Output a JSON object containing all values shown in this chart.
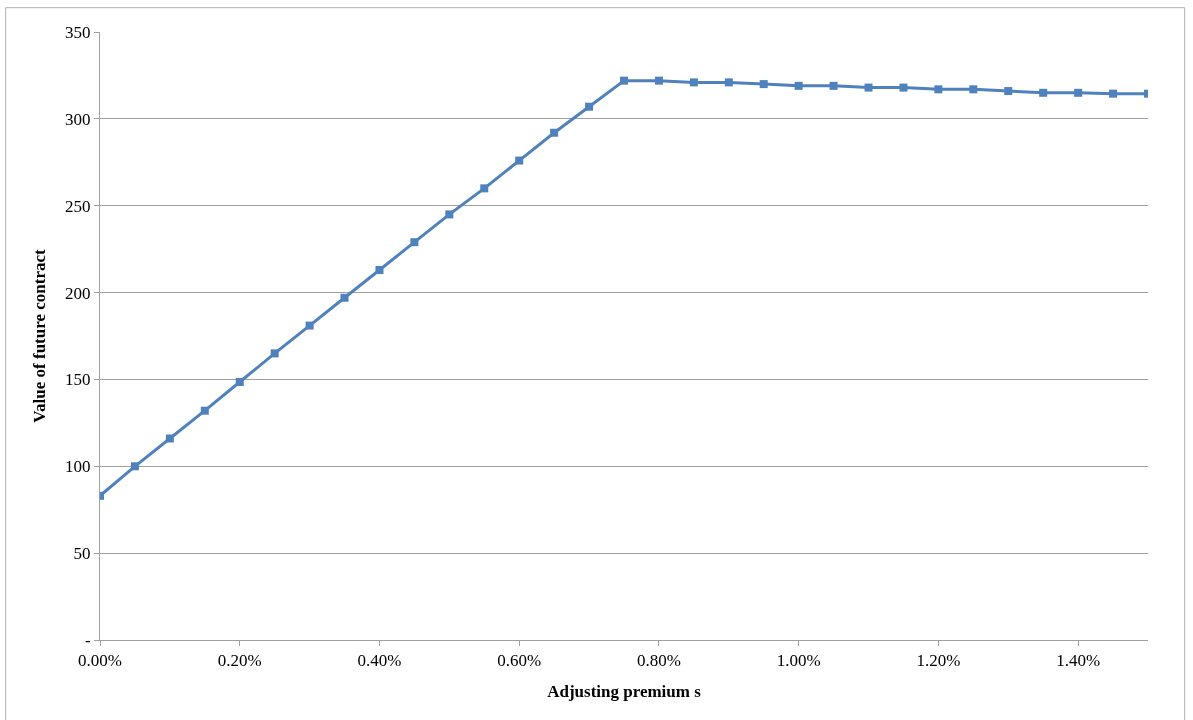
{
  "chart_data": {
    "type": "line",
    "xlabel": "Adjusting premium s",
    "ylabel": "Value of future contract",
    "x": [
      0,
      0.05,
      0.1,
      0.15,
      0.2,
      0.25,
      0.3,
      0.35,
      0.4,
      0.45,
      0.5,
      0.55,
      0.6,
      0.65,
      0.7,
      0.75,
      0.8,
      0.85,
      0.9,
      0.95,
      1.0,
      1.05,
      1.1,
      1.15,
      1.2,
      1.25,
      1.3,
      1.35,
      1.4,
      1.45,
      1.5
    ],
    "series": [
      {
        "color": "#4f81bd",
        "values": [
          83,
          100,
          116,
          132,
          148.5,
          165,
          181,
          197,
          213,
          229,
          245,
          260,
          276,
          292,
          307,
          322,
          322,
          321,
          321,
          320,
          319,
          319,
          318,
          318,
          317,
          317,
          316,
          315,
          315,
          314.5,
          314.5
        ]
      }
    ],
    "xlim": [
      0,
      1.5
    ],
    "xticks": [
      {
        "value": 0,
        "label": "0.00%"
      },
      {
        "value": 0.2,
        "label": "0.20%"
      },
      {
        "value": 0.4,
        "label": "0.40%"
      },
      {
        "value": 0.6,
        "label": "0.60%"
      },
      {
        "value": 0.8,
        "label": "0.80%"
      },
      {
        "value": 1.0,
        "label": "1.00%"
      },
      {
        "value": 1.2,
        "label": "1.20%"
      },
      {
        "value": 1.4,
        "label": "1.40%"
      }
    ],
    "ylim": [
      0,
      350
    ],
    "yticks": [
      {
        "value": 0,
        "label": "-"
      },
      50,
      100,
      150,
      200,
      250,
      300,
      350
    ],
    "grid": "y",
    "marker": "square",
    "line_style": "solid"
  }
}
